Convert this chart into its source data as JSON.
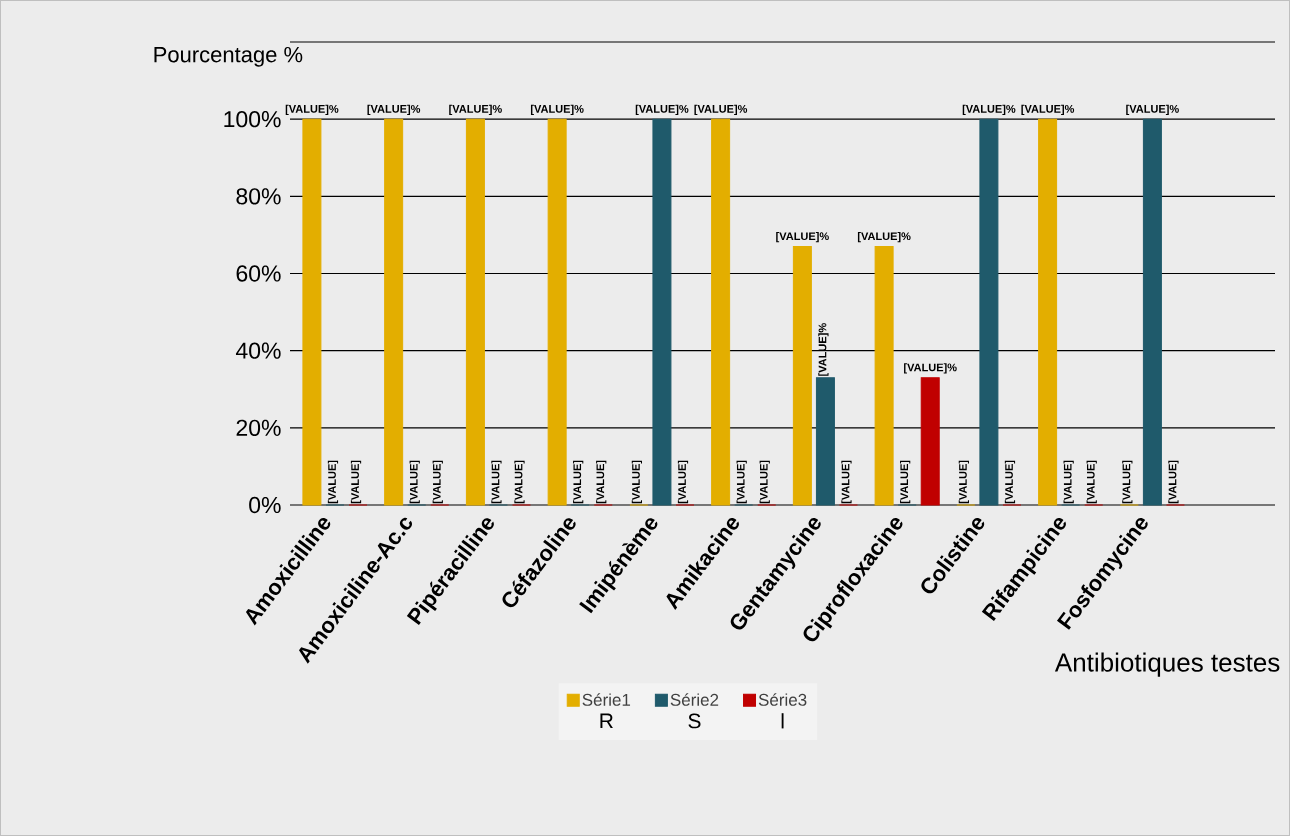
{
  "chart_data": {
    "type": "bar",
    "xlabel": "Antibiotiques testes",
    "ylabel": "Pourcentage %",
    "categories": [
      "Amoxicilline",
      "Amoxiciline-Ac.c",
      "Pipéracilline",
      "Céfazoline",
      "Imipénème",
      "Amikacine",
      "Gentamycine",
      "Ciprofloxacine",
      "Colistine",
      "Rifampicine",
      "Fosfomycine"
    ],
    "series": [
      {
        "name": "Série1",
        "color": "#E3AE00",
        "values": [
          100,
          100,
          100,
          100,
          0,
          100,
          67,
          67,
          0,
          100,
          0
        ],
        "value_labels": [
          "[VALUE]%",
          "[VALUE]%",
          "[VALUE]%",
          "[VALUE]%",
          "[VALUE]",
          "[VALUE]%",
          "[VALUE]%",
          "[VALUE]%",
          "[VALUE]",
          "[VALUE]%",
          "[VALUE]"
        ]
      },
      {
        "name": "Série2",
        "color": "#1F5A6B",
        "values": [
          0,
          0,
          0,
          0,
          100,
          0,
          33,
          0,
          100,
          0,
          100
        ],
        "value_labels": [
          "[VALUE]",
          "[VALUE]",
          "[VALUE]",
          "[VALUE]",
          "[VALUE]%",
          "[VALUE]",
          "[VALUE]%",
          "[VALUE]",
          "[VALUE]%",
          "[VALUE]",
          "[VALUE]%"
        ]
      },
      {
        "name": "Série3",
        "color": "#C00000",
        "values": [
          0,
          0,
          0,
          0,
          0,
          0,
          0,
          33,
          0,
          0,
          0
        ],
        "value_labels": [
          "[VALUE]",
          "[VALUE]",
          "[VALUE]",
          "[VALUE]",
          "[VALUE]",
          "[VALUE]",
          "[VALUE]",
          "[VALUE]%",
          "[VALUE]",
          "[VALUE]",
          "[VALUE]"
        ]
      }
    ],
    "ylim": [
      0,
      120
    ],
    "yticks": [
      {
        "value": 0,
        "label": "0%"
      },
      {
        "value": 20,
        "label": "20%"
      },
      {
        "value": 40,
        "label": "40%"
      },
      {
        "value": 60,
        "label": "60%"
      },
      {
        "value": 80,
        "label": "80%"
      },
      {
        "value": 100,
        "label": "100%"
      },
      {
        "value": 120,
        "label": null
      }
    ],
    "grid": "y",
    "legend": "bottom",
    "annotations": [
      "R",
      "S",
      "l"
    ]
  }
}
